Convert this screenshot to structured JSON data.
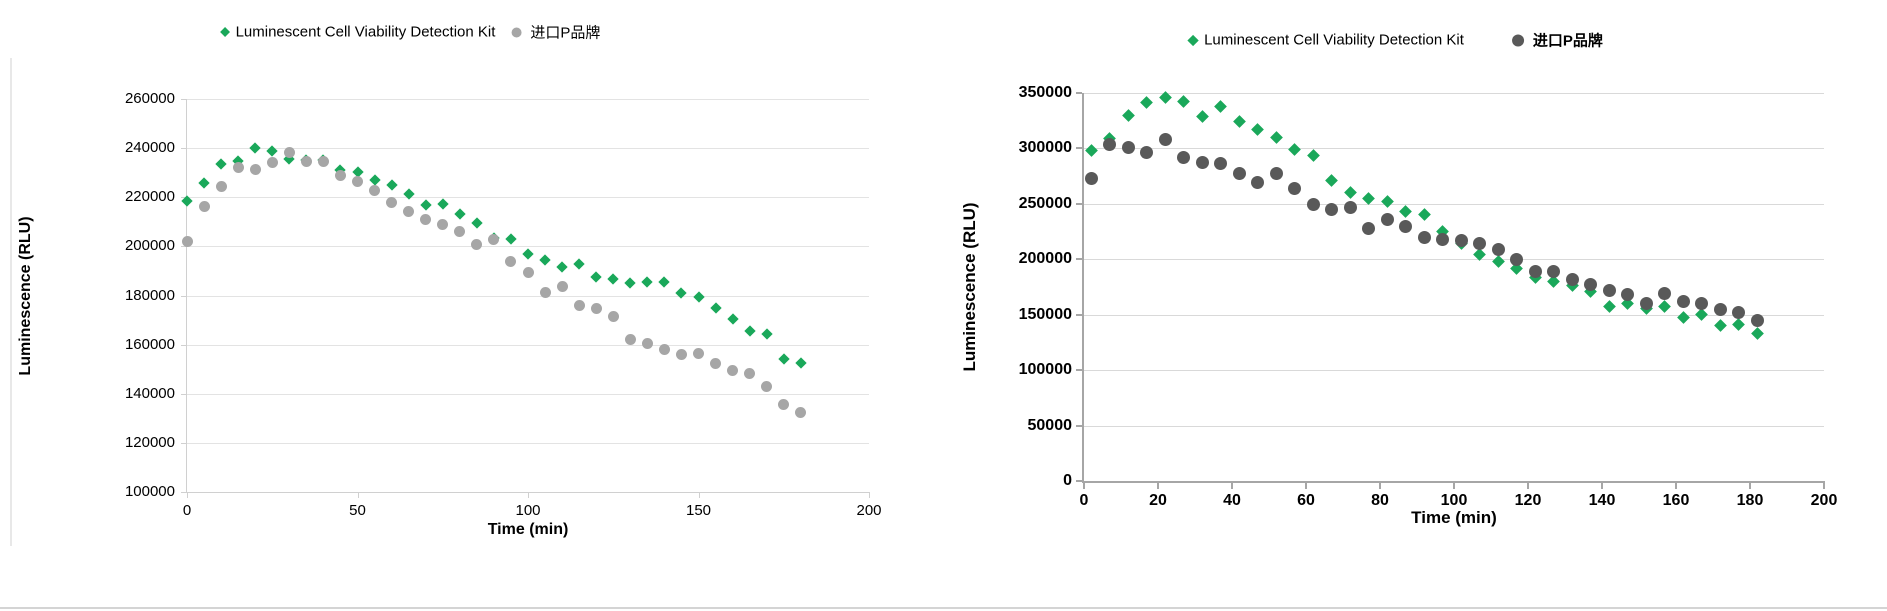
{
  "page": {
    "background": "#ffffff"
  },
  "colors": {
    "kit_green": "#1aa85a",
    "pbrand_light_gray": "#a6a6a6",
    "pbrand_dark_gray": "#595959",
    "grid_left": "#e3e3e3",
    "grid_right": "#d9d9d9",
    "axis_left": "#d0d0d0",
    "axis_right": "#a6a6a6",
    "text": "#000000"
  },
  "chart_data": [
    {
      "id": "left",
      "type": "scatter",
      "title": "",
      "xlabel": "Time (min)",
      "ylabel": "Luminescence  (RLU)",
      "xlim": [
        0,
        200
      ],
      "ylim": [
        100000,
        260000
      ],
      "x_ticks": [
        0,
        50,
        100,
        150,
        200
      ],
      "y_ticks": [
        100000,
        120000,
        140000,
        160000,
        180000,
        200000,
        220000,
        240000,
        260000
      ],
      "grid": true,
      "legend_position": "top",
      "x": [
        0,
        5,
        10,
        15,
        20,
        25,
        30,
        35,
        40,
        45,
        50,
        55,
        60,
        65,
        70,
        75,
        80,
        85,
        90,
        95,
        100,
        105,
        110,
        115,
        120,
        125,
        130,
        135,
        140,
        145,
        150,
        155,
        160,
        165,
        170,
        175,
        180
      ],
      "series": [
        {
          "name": "Luminescent Cell Viability Detection Kit",
          "marker": "diamond",
          "color": "#1aa85a",
          "bold_legend": false,
          "values": [
            218500,
            226000,
            233500,
            234800,
            239900,
            238800,
            235500,
            235200,
            235000,
            231000,
            230300,
            227000,
            225000,
            221300,
            216700,
            217400,
            213300,
            209500,
            203500,
            203100,
            197000,
            194300,
            191600,
            192900,
            187500,
            186600,
            185200,
            185400,
            185400,
            181100,
            179300,
            175000,
            170500,
            165700,
            164400,
            154200,
            152400
          ]
        },
        {
          "name": "进口P品牌",
          "marker": "circle",
          "color": "#a6a6a6",
          "bold_legend": false,
          "values": [
            202000,
            216300,
            224200,
            232100,
            231400,
            234000,
            238400,
            234700,
            234400,
            229000,
            226500,
            222900,
            218000,
            214000,
            211000,
            209000,
            206000,
            200800,
            202700,
            194000,
            189500,
            181400,
            183700,
            175900,
            174800,
            171600,
            162000,
            160300,
            158100,
            155900,
            156400,
            152400,
            149400,
            148300,
            143000,
            135500,
            132400
          ]
        }
      ]
    },
    {
      "id": "right",
      "type": "scatter",
      "title": "",
      "xlabel": "Time  (min)",
      "ylabel": "Luminescence  (RLU)",
      "xlim": [
        0,
        200
      ],
      "ylim": [
        0,
        350000
      ],
      "x_ticks": [
        0,
        20,
        40,
        60,
        80,
        100,
        120,
        140,
        160,
        180,
        200
      ],
      "y_ticks": [
        0,
        50000,
        100000,
        150000,
        200000,
        250000,
        300000,
        350000
      ],
      "grid": true,
      "legend_position": "top",
      "x": [
        2,
        7,
        12,
        17,
        22,
        27,
        32,
        37,
        42,
        47,
        52,
        57,
        62,
        67,
        72,
        77,
        82,
        87,
        92,
        97,
        102,
        107,
        112,
        117,
        122,
        127,
        132,
        137,
        142,
        147,
        152,
        157,
        162,
        167,
        172,
        177,
        182
      ],
      "series": [
        {
          "name": "Luminescent Cell Viability Detection Kit",
          "marker": "diamond",
          "color": "#1aa85a",
          "bold_legend": false,
          "values": [
            298000,
            309000,
            329500,
            341000,
            345500,
            342000,
            329000,
            337500,
            324500,
            317000,
            310000,
            299000,
            293500,
            271500,
            260000,
            255000,
            252000,
            243500,
            240000,
            225500,
            214500,
            204000,
            198000,
            192000,
            184000,
            180000,
            176000,
            171000,
            157500,
            160500,
            156000,
            157000,
            147500,
            150000,
            140000,
            141500,
            133500
          ]
        },
        {
          "name": "进口P品牌",
          "marker": "circle",
          "color": "#595959",
          "bold_legend": true,
          "values": [
            273000,
            303500,
            301000,
            296500,
            308000,
            292000,
            287500,
            286000,
            277000,
            269500,
            277500,
            264000,
            249000,
            244500,
            246500,
            228000,
            236000,
            230000,
            219500,
            217500,
            217000,
            214500,
            209000,
            200000,
            189000,
            189000,
            182000,
            177000,
            171500,
            168500,
            160500,
            169500,
            162000,
            160500,
            154500,
            152000,
            145000
          ]
        }
      ]
    }
  ]
}
